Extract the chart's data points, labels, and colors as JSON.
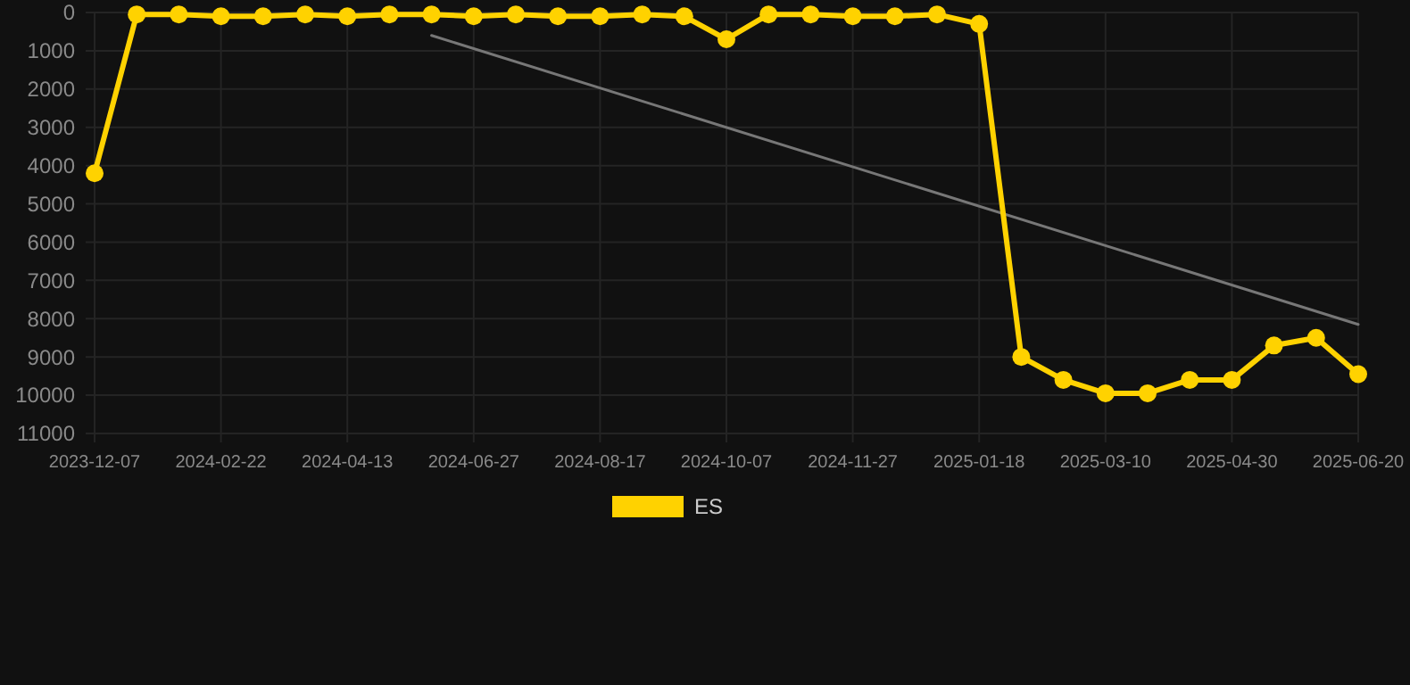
{
  "chart_data": {
    "type": "line",
    "categories": [
      "2023-12-07",
      null,
      null,
      "2024-02-22",
      null,
      null,
      "2024-04-13",
      null,
      null,
      "2024-06-27",
      null,
      null,
      "2024-08-17",
      null,
      null,
      "2024-10-07",
      null,
      null,
      "2024-11-27",
      null,
      null,
      "2025-01-18",
      null,
      null,
      "2025-03-10",
      null,
      null,
      "2025-04-30",
      null,
      null,
      "2025-06-20"
    ],
    "series": [
      {
        "name": "ES",
        "color": "#ffd200",
        "marker": "circle",
        "values": [
          4200,
          50,
          50,
          100,
          100,
          50,
          100,
          50,
          50,
          100,
          50,
          100,
          100,
          50,
          100,
          700,
          50,
          50,
          100,
          100,
          50,
          300,
          9000,
          9600,
          9950,
          9950,
          9600,
          9600,
          8700,
          8500,
          9450
        ]
      },
      {
        "type": "line",
        "color": "#777777",
        "marker": "none",
        "values": [
          null,
          null,
          null,
          null,
          null,
          null,
          null,
          null,
          600,
          null,
          null,
          null,
          null,
          null,
          null,
          null,
          null,
          null,
          null,
          null,
          null,
          null,
          null,
          null,
          null,
          null,
          null,
          null,
          null,
          null,
          8150
        ]
      }
    ],
    "ylim": [
      11000,
      0
    ],
    "yticks": [
      0,
      1000,
      2000,
      3000,
      4000,
      5000,
      6000,
      7000,
      8000,
      9000,
      10000,
      11000
    ],
    "grid": true,
    "legend": "bottom"
  }
}
